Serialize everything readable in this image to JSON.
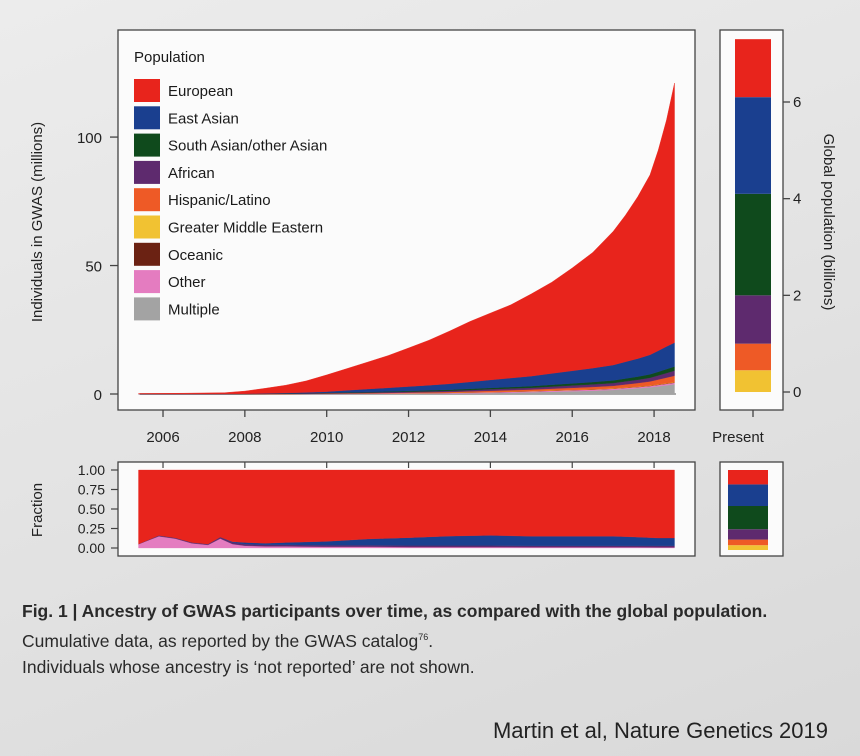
{
  "chart_data": [
    {
      "type": "area",
      "subtype": "stacked",
      "x_label_ticks": [
        "2006",
        "2008",
        "2010",
        "2012",
        "2014",
        "2016",
        "2018"
      ],
      "ylabel": "Individuals in GWAS (millions)",
      "y_ticks": [
        0,
        50,
        100
      ],
      "ylim": [
        0,
        130
      ],
      "legend": {
        "title": "Population",
        "placement": "top-left",
        "entries": [
          {
            "name": "European",
            "color": "#e8241c"
          },
          {
            "name": "East Asian",
            "color": "#1a3f8f"
          },
          {
            "name": "South Asian/other Asian",
            "color": "#0f4a1c"
          },
          {
            "name": "African",
            "color": "#5e2a6e"
          },
          {
            "name": "Hispanic/Latino",
            "color": "#ee5a26"
          },
          {
            "name": "Greater Middle Eastern",
            "color": "#f1c232"
          },
          {
            "name": "Oceanic",
            "color": "#6b2213"
          },
          {
            "name": "Other",
            "color": "#e47cc0"
          },
          {
            "name": "Multiple",
            "color": "#a3a3a3"
          }
        ]
      },
      "x": [
        2005.4,
        2006.5,
        2007.5,
        2008,
        2008.5,
        2009,
        2009.5,
        2010,
        2010.5,
        2011,
        2011.5,
        2012,
        2012.5,
        2013,
        2013.5,
        2014,
        2014.5,
        2015,
        2015.5,
        2016,
        2016.5,
        2017,
        2017.3,
        2017.6,
        2017.9,
        2018.1,
        2018.3,
        2018.5
      ],
      "series": [
        {
          "name": "Multiple",
          "values": [
            0,
            0,
            0,
            0,
            0,
            0,
            0.02,
            0.03,
            0.05,
            0.08,
            0.1,
            0.12,
            0.15,
            0.2,
            0.3,
            0.4,
            0.55,
            0.7,
            0.9,
            1.1,
            1.3,
            1.6,
            1.9,
            2.2,
            2.6,
            3,
            3.4,
            3.8
          ]
        },
        {
          "name": "Other",
          "values": [
            0,
            0,
            0.01,
            0.02,
            0.03,
            0.05,
            0.07,
            0.1,
            0.12,
            0.15,
            0.18,
            0.2,
            0.22,
            0.25,
            0.28,
            0.3,
            0.32,
            0.35,
            0.38,
            0.4,
            0.42,
            0.45,
            0.47,
            0.5,
            0.52,
            0.55,
            0.57,
            0.6
          ]
        },
        {
          "name": "Oceanic",
          "values": [
            0,
            0,
            0,
            0,
            0,
            0,
            0,
            0.01,
            0.01,
            0.01,
            0.02,
            0.02,
            0.03,
            0.03,
            0.04,
            0.04,
            0.05,
            0.05,
            0.06,
            0.06,
            0.07,
            0.07,
            0.08,
            0.08,
            0.09,
            0.09,
            0.1,
            0.1
          ]
        },
        {
          "name": "Greater Middle Eastern",
          "values": [
            0,
            0,
            0,
            0,
            0,
            0,
            0.01,
            0.01,
            0.02,
            0.02,
            0.03,
            0.03,
            0.04,
            0.04,
            0.05,
            0.05,
            0.06,
            0.06,
            0.07,
            0.07,
            0.08,
            0.08,
            0.09,
            0.09,
            0.1,
            0.1,
            0.11,
            0.12
          ]
        },
        {
          "name": "Hispanic/Latino",
          "values": [
            0,
            0,
            0,
            0,
            0.01,
            0.02,
            0.03,
            0.05,
            0.08,
            0.12,
            0.15,
            0.2,
            0.25,
            0.3,
            0.4,
            0.5,
            0.55,
            0.6,
            0.7,
            0.8,
            0.9,
            1,
            1.2,
            1.4,
            1.6,
            1.9,
            2.2,
            2.5
          ]
        },
        {
          "name": "African",
          "values": [
            0,
            0,
            0.01,
            0.03,
            0.05,
            0.08,
            0.1,
            0.15,
            0.2,
            0.25,
            0.3,
            0.35,
            0.4,
            0.45,
            0.5,
            0.6,
            0.65,
            0.7,
            0.8,
            0.9,
            1,
            1.1,
            1.2,
            1.3,
            1.45,
            1.6,
            1.8,
            2
          ]
        },
        {
          "name": "South Asian/other Asian",
          "values": [
            0,
            0,
            0,
            0.02,
            0.04,
            0.06,
            0.08,
            0.1,
            0.15,
            0.2,
            0.25,
            0.3,
            0.35,
            0.4,
            0.45,
            0.5,
            0.55,
            0.6,
            0.7,
            0.8,
            0.9,
            1,
            1.1,
            1.2,
            1.3,
            1.4,
            1.5,
            1.6
          ]
        },
        {
          "name": "East Asian",
          "values": [
            0,
            0,
            0,
            0.05,
            0.1,
            0.2,
            0.3,
            0.5,
            0.8,
            1.1,
            1.4,
            1.7,
            2,
            2.3,
            2.7,
            3.1,
            3.5,
            3.9,
            4.4,
            4.9,
            5.4,
            6,
            6.5,
            7,
            7.6,
            8.2,
            8.8,
            9.3
          ]
        },
        {
          "name": "European",
          "values": [
            0.2,
            0.3,
            0.5,
            1,
            2,
            3,
            4.5,
            6.5,
            8.5,
            10.5,
            12.5,
            15,
            17.5,
            20.5,
            23.5,
            26,
            28.5,
            32,
            35.5,
            40,
            45,
            52,
            57,
            63,
            70,
            78,
            88,
            101
          ]
        }
      ]
    },
    {
      "type": "bar",
      "subtype": "stacked",
      "xlabel": "Present",
      "ylabel": "Global population (billions)",
      "y_ticks": [
        0,
        2,
        4,
        6
      ],
      "ylim": [
        0,
        7.6
      ],
      "categories": [
        "Present"
      ],
      "series": [
        {
          "name": "Greater Middle Eastern",
          "values": [
            0.45
          ]
        },
        {
          "name": "Hispanic/Latino",
          "values": [
            0.55
          ]
        },
        {
          "name": "African",
          "values": [
            1.0
          ]
        },
        {
          "name": "South Asian/other Asian",
          "values": [
            2.1
          ]
        },
        {
          "name": "East Asian",
          "values": [
            2.0
          ]
        },
        {
          "name": "European",
          "values": [
            1.2
          ]
        }
      ]
    },
    {
      "type": "area",
      "subtype": "stacked-fraction",
      "ylabel": "Fraction",
      "y_ticks": [
        "1.00",
        "0.75",
        "0.50",
        "0.25",
        "0.00"
      ],
      "ylim": [
        0,
        1
      ],
      "x": [
        2005.4,
        2005.9,
        2006.3,
        2006.7,
        2007.1,
        2007.4,
        2007.7,
        2008,
        2008.5,
        2009,
        2010,
        2011,
        2012,
        2013,
        2014,
        2015,
        2016,
        2017,
        2017.6,
        2018.1,
        2018.5
      ],
      "series": [
        {
          "name": "Other",
          "values": [
            0.05,
            0.15,
            0.12,
            0.06,
            0.04,
            0.12,
            0.05,
            0.03,
            0.02,
            0.02,
            0.015,
            0.015,
            0.012,
            0.012,
            0.012,
            0.01,
            0.01,
            0.01,
            0.01,
            0.008,
            0.008
          ]
        },
        {
          "name": "African",
          "values": [
            0,
            0.01,
            0.01,
            0.01,
            0.01,
            0.02,
            0.02,
            0.02,
            0.02,
            0.02,
            0.02,
            0.02,
            0.02,
            0.02,
            0.02,
            0.02,
            0.02,
            0.02,
            0.02,
            0.02,
            0.02
          ]
        },
        {
          "name": "East Asian",
          "values": [
            0,
            0,
            0,
            0,
            0,
            0,
            0.01,
            0.02,
            0.02,
            0.03,
            0.05,
            0.08,
            0.1,
            0.12,
            0.13,
            0.12,
            0.12,
            0.12,
            0.11,
            0.1,
            0.1
          ]
        },
        {
          "name": "European",
          "values": [
            0.95,
            0.84,
            0.87,
            0.93,
            0.95,
            0.86,
            0.92,
            0.93,
            0.94,
            0.93,
            0.915,
            0.885,
            0.868,
            0.848,
            0.838,
            0.85,
            0.85,
            0.85,
            0.86,
            0.872,
            0.872
          ]
        }
      ]
    },
    {
      "type": "bar",
      "subtype": "stacked-fraction",
      "categories": [
        "Present"
      ],
      "series": [
        {
          "name": "Greater Middle Eastern",
          "values": [
            0.06
          ]
        },
        {
          "name": "Hispanic/Latino",
          "values": [
            0.07
          ]
        },
        {
          "name": "African",
          "values": [
            0.13
          ]
        },
        {
          "name": "South Asian/other Asian",
          "values": [
            0.29
          ]
        },
        {
          "name": "East Asian",
          "values": [
            0.27
          ]
        },
        {
          "name": "European",
          "values": [
            0.18
          ]
        }
      ]
    }
  ],
  "caption": {
    "label": "Fig. 1 | ",
    "title": "Ancestry of GWAS participants over time, as compared with the global population.",
    "text": " Cumulative data, as reported by the GWAS catalog",
    "ref": "76",
    "text2": ".",
    "line3": "Individuals whose ancestry is ‘not reported’ are not shown."
  },
  "credit": "Martin et al, Nature Genetics 2019"
}
